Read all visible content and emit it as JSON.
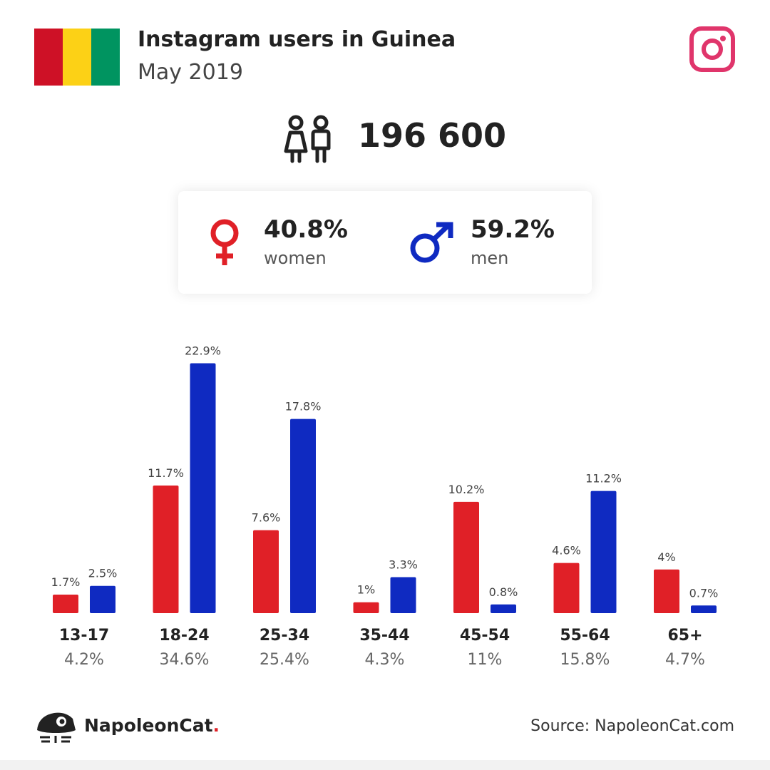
{
  "header": {
    "title": "Instagram users in Guinea",
    "subtitle": "May 2019",
    "flag_colors": [
      "#ce1126",
      "#fcd116",
      "#009460"
    ],
    "instagram_icon": "instagram-icon",
    "instagram_color": "#e0356b"
  },
  "total": {
    "icon": "people-icon",
    "value": "196 600"
  },
  "gender": {
    "women": {
      "percent": "40.8%",
      "label": "women",
      "color": "#e02027",
      "icon": "female-symbol-icon"
    },
    "men": {
      "percent": "59.2%",
      "label": "men",
      "color": "#0f2ac1",
      "icon": "male-symbol-icon"
    }
  },
  "chart_data": {
    "type": "bar",
    "categories": [
      "13-17",
      "18-24",
      "25-34",
      "35-44",
      "45-54",
      "55-64",
      "65+"
    ],
    "category_totals": [
      "4.2%",
      "34.6%",
      "25.4%",
      "4.3%",
      "11%",
      "15.8%",
      "4.7%"
    ],
    "series": [
      {
        "color": "#e02027",
        "values": [
          1.7,
          11.7,
          7.6,
          1,
          10.2,
          4.6,
          4
        ],
        "labels": [
          "1.7%",
          "11.7%",
          "7.6%",
          "1%",
          "10.2%",
          "4.6%",
          "4%"
        ]
      },
      {
        "color": "#0f2ac1",
        "values": [
          2.5,
          22.9,
          17.8,
          3.3,
          0.8,
          11.2,
          0.7
        ],
        "labels": [
          "2.5%",
          "22.9%",
          "17.8%",
          "3.3%",
          "0.8%",
          "11.2%",
          "0.7%"
        ]
      }
    ],
    "title": "",
    "xlabel": "",
    "ylabel": "",
    "ylim": [
      0,
      23
    ],
    "grid": false
  },
  "footer": {
    "brand_name": "NapoleonCat",
    "brand_dot": ".",
    "logo_icon": "napoleoncat-logo-icon",
    "source": "Source: NapoleonCat.com"
  }
}
